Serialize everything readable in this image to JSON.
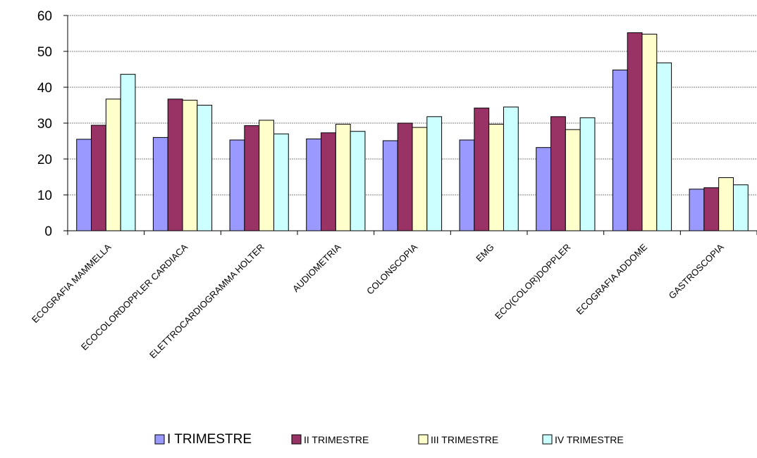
{
  "chart_data": {
    "type": "bar",
    "categories": [
      "ECOGRAFIA MAMMELLA",
      "ECOCOLORDOPPLER CARDIACA",
      "ELETTROCARDIOGRAMMA HOLTER",
      "AUDIOMETRIA",
      "COLONSCOPIA",
      "EMG",
      "ECO(COLOR)DOPPLER",
      "ECOGRAFIA ADDOME",
      "GASTROSCOPIA"
    ],
    "series": [
      {
        "name": "I TRIMESTRE",
        "color": "#9999ff",
        "values": [
          25.5,
          26.0,
          25.3,
          25.6,
          25.1,
          25.3,
          23.2,
          44.8,
          11.6
        ]
      },
      {
        "name": "II TRIMESTRE",
        "color": "#993366",
        "values": [
          29.4,
          36.7,
          29.3,
          27.3,
          30.0,
          34.2,
          31.8,
          55.2,
          12.0
        ]
      },
      {
        "name": "III TRIMESTRE",
        "color": "#ffffcc",
        "values": [
          36.7,
          36.4,
          30.8,
          29.7,
          28.8,
          29.7,
          28.2,
          54.8,
          14.8
        ]
      },
      {
        "name": "IV TRIMESTRE",
        "color": "#ccffff",
        "values": [
          43.6,
          35.0,
          27.0,
          27.7,
          31.8,
          34.5,
          31.5,
          46.8,
          12.8
        ]
      }
    ],
    "yticks": [
      "0",
      "10",
      "20",
      "30",
      "40",
      "50",
      "60"
    ],
    "ylim": [
      0,
      60
    ],
    "grid": true,
    "legend_position": "bottom",
    "title": "",
    "xlabel": "",
    "ylabel": ""
  }
}
